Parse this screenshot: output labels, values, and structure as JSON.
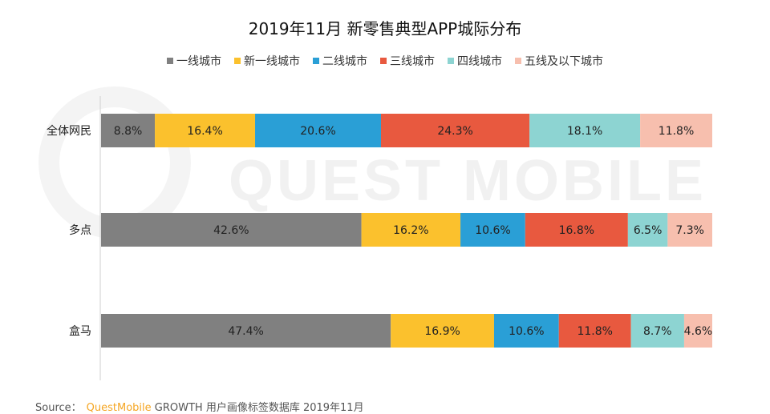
{
  "title": "2019年11月 新零售典型APP城际分布",
  "footer": {
    "source_label": "Source：",
    "brand": "QuestMobile",
    "text": "GROWTH 用户画像标签数据库 2019年11月"
  },
  "watermark": "QUEST MOBILE",
  "colors": {
    "tier1": "#808080",
    "new_tier1": "#fbc12d",
    "tier2": "#2a9fd6",
    "tier3": "#e8593f",
    "tier4": "#8dd4d2",
    "tier5": "#f7bfae"
  },
  "chart_data": {
    "type": "bar",
    "orientation": "horizontal",
    "stacked": true,
    "title": "2019年11月 新零售典型APP城际分布",
    "categories": [
      "全体网民",
      "多点",
      "盒马"
    ],
    "xlim": [
      0,
      100
    ],
    "legend_position": "top",
    "grid": false,
    "series": [
      {
        "name": "一线城市",
        "color": "#808080",
        "values": [
          8.8,
          42.6,
          47.4
        ],
        "labels": [
          "8.8%",
          "42.6%",
          "47.4%"
        ]
      },
      {
        "name": "新一线城市",
        "color": "#fbc12d",
        "values": [
          16.4,
          16.2,
          16.9
        ],
        "labels": [
          "16.4%",
          "16.2%",
          "16.9%"
        ]
      },
      {
        "name": "二线城市",
        "color": "#2a9fd6",
        "values": [
          20.6,
          10.6,
          10.6
        ],
        "labels": [
          "20.6%",
          "10.6%",
          "10.6%"
        ]
      },
      {
        "name": "三线城市",
        "color": "#e8593f",
        "values": [
          24.3,
          16.8,
          11.8
        ],
        "labels": [
          "24.3%",
          "16.8%",
          "11.8%"
        ]
      },
      {
        "name": "四线城市",
        "color": "#8dd4d2",
        "values": [
          18.1,
          6.5,
          8.7
        ],
        "labels": [
          "18.1%",
          "6.5%",
          "8.7%"
        ]
      },
      {
        "name": "五线及以下城市",
        "color": "#f7bfae",
        "values": [
          11.8,
          7.3,
          4.6
        ],
        "labels": [
          "11.8%",
          "7.3%",
          "4.6%"
        ]
      }
    ]
  }
}
